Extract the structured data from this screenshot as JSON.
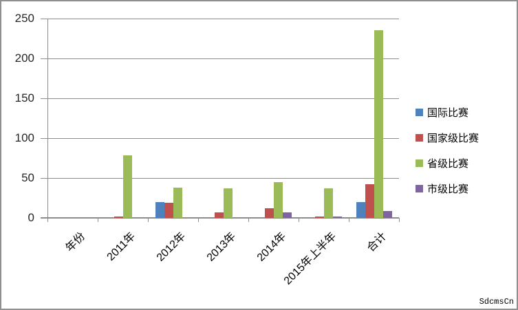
{
  "watermark": "SdcmsCn",
  "chart_data": {
    "type": "bar",
    "title": "",
    "xlabel": "",
    "ylabel": "",
    "categories": [
      "年份",
      "2011年",
      "2012年",
      "2013年",
      "2014年",
      "2015年上半年",
      "合计"
    ],
    "series": [
      {
        "name": "国际比赛",
        "color": "#4F81BD",
        "values": [
          0,
          0,
          20,
          0,
          0,
          0,
          20
        ]
      },
      {
        "name": "国家级比赛",
        "color": "#C0504D",
        "values": [
          0,
          2,
          19,
          7,
          12,
          2,
          42
        ]
      },
      {
        "name": "省级比赛",
        "color": "#9BBB59",
        "values": [
          0,
          78,
          38,
          37,
          45,
          37,
          235
        ]
      },
      {
        "name": "市级比赛",
        "color": "#8064A2",
        "values": [
          0,
          0,
          0,
          0,
          7,
          2,
          9
        ]
      }
    ],
    "ylim": [
      0,
      250
    ],
    "yticks": [
      0,
      50,
      100,
      150,
      200,
      250
    ],
    "grid": true,
    "legend_position": "right",
    "axis_color": "#8c8c8c"
  }
}
